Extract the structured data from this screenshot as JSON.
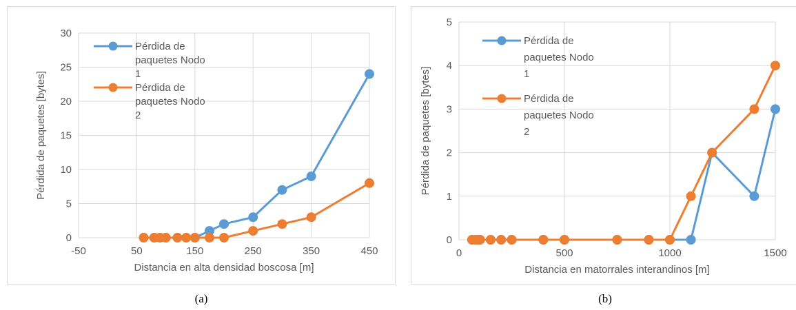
{
  "chart_data": [
    {
      "type": "line",
      "caption": "(a)",
      "xlabel": "Distancia en alta densidad boscosa [m]",
      "ylabel": "Pérdida de paquetes [bytes]",
      "xlim": [
        -50,
        450
      ],
      "ylim": [
        0,
        30
      ],
      "xticks": [
        -50,
        50,
        150,
        250,
        350,
        450
      ],
      "yticks": [
        0,
        5,
        10,
        15,
        20,
        25,
        30
      ],
      "grid": true,
      "legend": "top-left",
      "series": [
        {
          "name": "Pérdida de paquetes Nodo 1",
          "color": "#5B9BD5",
          "x": [
            62,
            80,
            90,
            100,
            120,
            135,
            150,
            175,
            200,
            250,
            300,
            350,
            450
          ],
          "y": [
            0,
            0,
            0,
            0,
            0,
            0,
            0,
            1,
            2,
            3,
            7,
            9,
            24
          ]
        },
        {
          "name": "Pérdida de paquetes Nodo 2",
          "color": "#ED7D31",
          "x": [
            62,
            80,
            90,
            100,
            120,
            135,
            150,
            175,
            200,
            250,
            300,
            350,
            450
          ],
          "y": [
            0,
            0,
            0,
            0,
            0,
            0,
            0,
            0,
            0,
            1,
            2,
            3,
            8
          ]
        }
      ]
    },
    {
      "type": "line",
      "caption": "(b)",
      "xlabel": "Distancia en matorrales interandinos [m]",
      "ylabel": "Pérdida de paquetes [bytes]",
      "xlim": [
        0,
        1500
      ],
      "ylim": [
        0,
        5
      ],
      "xticks": [
        0,
        500,
        1000,
        1500
      ],
      "yticks": [
        0,
        1,
        2,
        3,
        4,
        5
      ],
      "grid": true,
      "legend": "top-left",
      "series": [
        {
          "name": "Pérdida de paquetes Nodo 1",
          "color": "#5B9BD5",
          "x": [
            62,
            80,
            90,
            100,
            150,
            200,
            250,
            400,
            500,
            750,
            900,
            1000,
            1100,
            1200,
            1400,
            1500
          ],
          "y": [
            0,
            0,
            0,
            0,
            0,
            0,
            0,
            0,
            0,
            0,
            0,
            0,
            0,
            2,
            1,
            3
          ]
        },
        {
          "name": "Pérdida de paquetes Nodo 2",
          "color": "#ED7D31",
          "x": [
            62,
            80,
            90,
            100,
            150,
            200,
            250,
            400,
            500,
            750,
            900,
            1000,
            1100,
            1200,
            1400,
            1500
          ],
          "y": [
            0,
            0,
            0,
            0,
            0,
            0,
            0,
            0,
            0,
            0,
            0,
            0,
            1,
            2,
            3,
            4
          ]
        }
      ]
    }
  ]
}
